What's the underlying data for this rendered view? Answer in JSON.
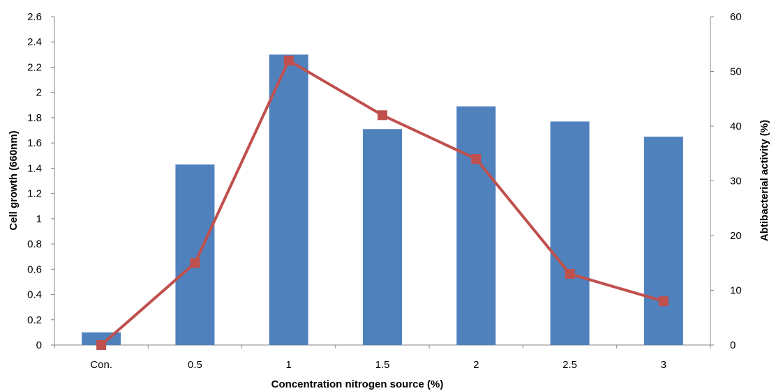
{
  "chart_data": {
    "type": "bar",
    "title": "",
    "xlabel": "Concentration nitrogen source (%)",
    "ylabel": "Cell growth (660nm)",
    "y2label": "Abtibacterial activity (%)",
    "categories": [
      "Con.",
      "0.5",
      "1",
      "1.5",
      "2",
      "2.5",
      "3"
    ],
    "ylim": [
      0,
      2.6
    ],
    "y2lim": [
      0,
      60
    ],
    "yticks": [
      "0",
      "0.2",
      "0.4",
      "0.6",
      "0.8",
      "1",
      "1.2",
      "1.4",
      "1.6",
      "1.8",
      "2",
      "2.2",
      "2.4",
      "2.6"
    ],
    "y2ticks": [
      "0",
      "10",
      "20",
      "30",
      "40",
      "50",
      "60"
    ],
    "grid": false,
    "legend": "none",
    "series": [
      {
        "type": "bar",
        "axis": "left",
        "color": "#4F81BD",
        "values": [
          0.1,
          1.43,
          2.3,
          1.71,
          1.89,
          1.77,
          1.65
        ]
      },
      {
        "type": "line",
        "axis": "right",
        "color": "#C0504D",
        "marker": "square",
        "values": [
          0,
          15,
          52,
          42,
          34,
          13,
          8
        ]
      }
    ]
  }
}
